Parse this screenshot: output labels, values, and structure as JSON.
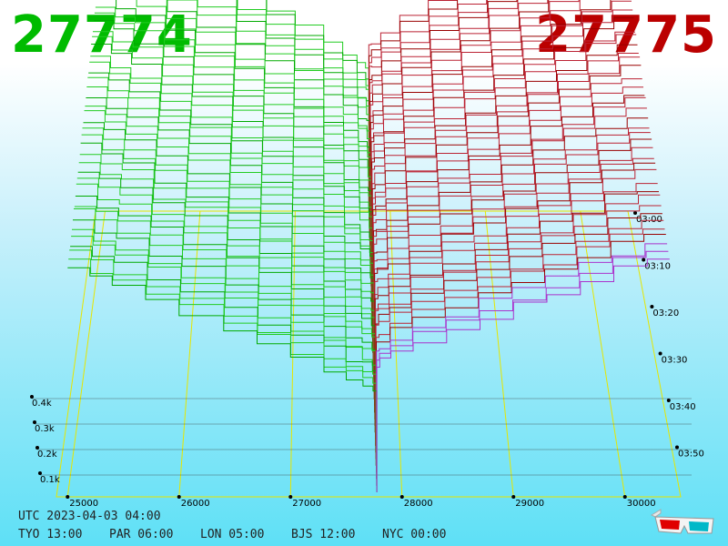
{
  "header": {
    "bid_price": "27774",
    "ask_price": "27775",
    "bid_color": "#00bb00",
    "ask_color": "#bb0000"
  },
  "chart_data": {
    "type": "area",
    "title": "",
    "x_axis": {
      "ticks": [
        "25000",
        "26000",
        "27000",
        "28000",
        "29000",
        "30000"
      ],
      "range": [
        24900,
        30500
      ]
    },
    "volume_axis": {
      "ticks": [
        "0.1k",
        "0.2k",
        "0.3k",
        "0.4k"
      ],
      "range": [
        0,
        0.45
      ]
    },
    "time_axis": {
      "ticks": [
        "03:00",
        "03:10",
        "03:20",
        "03:30",
        "03:40",
        "03:50"
      ],
      "range": [
        "02:55",
        "04:00"
      ]
    },
    "series": [
      {
        "name": "bids",
        "color": "#00aa00",
        "side": "below 27774"
      },
      {
        "name": "asks",
        "color": "#aa0000",
        "side": "above 27775"
      }
    ],
    "grid": true
  },
  "clocks": {
    "utc": "UTC 2023-04-03 04:00",
    "tyo": "TYO 13:00",
    "par": "PAR 06:00",
    "lon": "LON 05:00",
    "bjs": "BJS 12:00",
    "nyc": "NYC 00:00"
  },
  "icons": {
    "glasses": "anaglyph-3d-glasses-icon"
  }
}
